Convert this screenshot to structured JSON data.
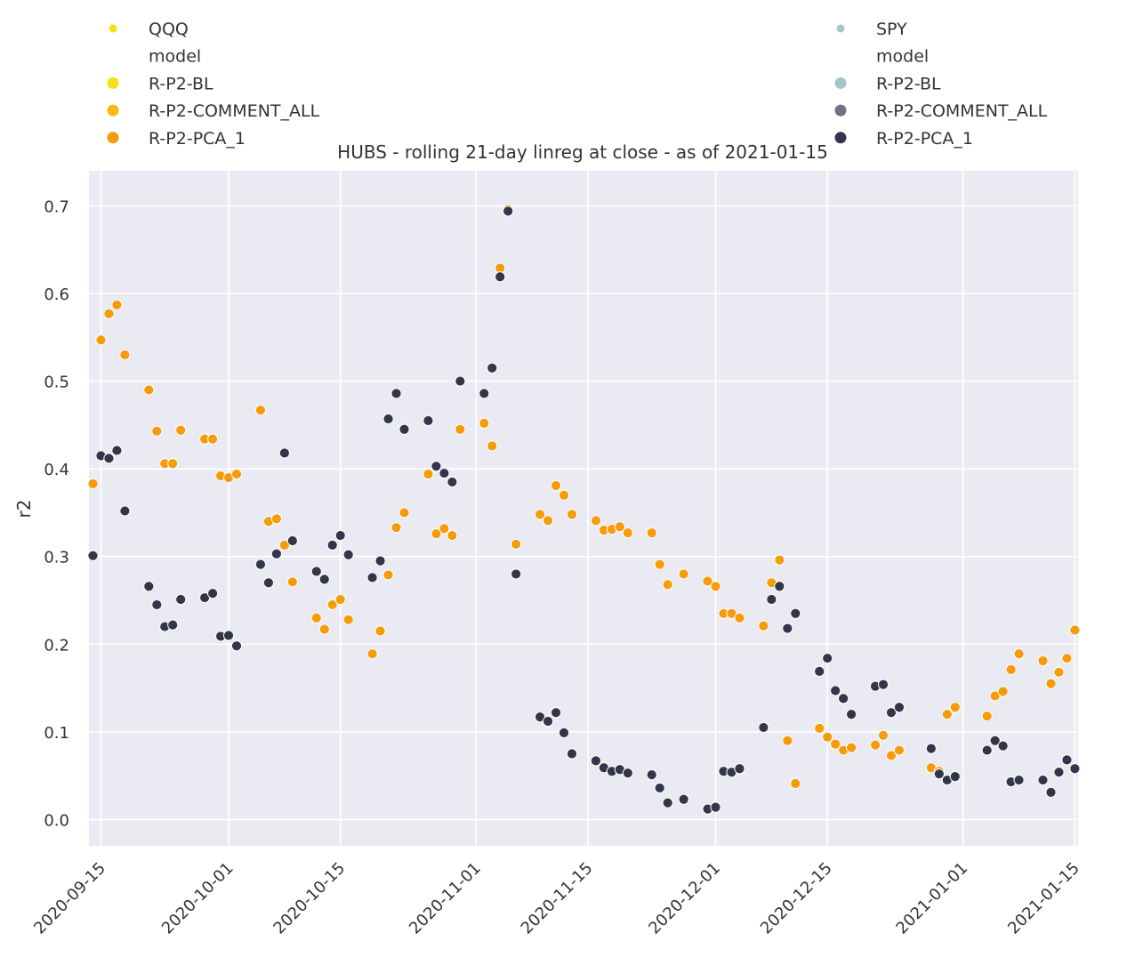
{
  "chart_data": {
    "type": "scatter",
    "title": "HUBS - rolling 21-day linreg at close - as of 2021-01-15",
    "xlabel": "",
    "ylabel": "r2",
    "ylim": [
      -0.03,
      0.74
    ],
    "xlim": [
      "2020-09-14",
      "2021-01-15"
    ],
    "grid": true,
    "background": "#eaeaf2",
    "x_ticks": [
      "2020-09-15",
      "2020-10-01",
      "2020-10-15",
      "2020-11-01",
      "2020-11-15",
      "2020-12-01",
      "2020-12-15",
      "2021-01-01",
      "2021-01-15"
    ],
    "y_ticks": [
      0.0,
      0.1,
      0.2,
      0.3,
      0.4,
      0.5,
      0.6,
      0.7
    ],
    "y_tick_labels": [
      "0.0",
      "0.1",
      "0.2",
      "0.3",
      "0.4",
      "0.5",
      "0.6",
      "0.7"
    ],
    "legends": [
      {
        "placement": "top-left",
        "entries": [
          {
            "label": "QQQ",
            "color": "#f5e11a",
            "kind": "hue"
          },
          {
            "label": "model",
            "color": null,
            "kind": "header"
          },
          {
            "label": "R-P2-BL",
            "color": "#f5e11a",
            "kind": "item"
          },
          {
            "label": "R-P2-COMMENT_ALL",
            "color": "#f5bc0c",
            "kind": "item"
          },
          {
            "label": "R-P2-PCA_1",
            "color": "#f59b0c",
            "kind": "item"
          }
        ]
      },
      {
        "placement": "top-right",
        "entries": [
          {
            "label": "SPY",
            "color": "#a3c7c7",
            "kind": "hue"
          },
          {
            "label": "model",
            "color": null,
            "kind": "header"
          },
          {
            "label": "R-P2-BL",
            "color": "#a3c7c7",
            "kind": "item"
          },
          {
            "label": "R-P2-COMMENT_ALL",
            "color": "#6b7385",
            "kind": "item"
          },
          {
            "label": "R-P2-PCA_1",
            "color": "#34344a",
            "kind": "item"
          }
        ]
      }
    ],
    "series": [
      {
        "name": "QQQ",
        "color": "#f59b0c",
        "points": [
          [
            "2020-09-14",
            0.383
          ],
          [
            "2020-09-15",
            0.547
          ],
          [
            "2020-09-16",
            0.577
          ],
          [
            "2020-09-17",
            0.587
          ],
          [
            "2020-09-18",
            0.53
          ],
          [
            "2020-09-21",
            0.49
          ],
          [
            "2020-09-22",
            0.443
          ],
          [
            "2020-09-23",
            0.406
          ],
          [
            "2020-09-24",
            0.406
          ],
          [
            "2020-09-25",
            0.444
          ],
          [
            "2020-09-28",
            0.434
          ],
          [
            "2020-09-29",
            0.434
          ],
          [
            "2020-09-30",
            0.392
          ],
          [
            "2020-10-01",
            0.39
          ],
          [
            "2020-10-02",
            0.394
          ],
          [
            "2020-10-05",
            0.467
          ],
          [
            "2020-10-06",
            0.34
          ],
          [
            "2020-10-07",
            0.343
          ],
          [
            "2020-10-08",
            0.313
          ],
          [
            "2020-10-09",
            0.271
          ],
          [
            "2020-10-12",
            0.23
          ],
          [
            "2020-10-13",
            0.217
          ],
          [
            "2020-10-14",
            0.245
          ],
          [
            "2020-10-15",
            0.251
          ],
          [
            "2020-10-16",
            0.228
          ],
          [
            "2020-10-19",
            0.189
          ],
          [
            "2020-10-20",
            0.215
          ],
          [
            "2020-10-21",
            0.279
          ],
          [
            "2020-10-22",
            0.333
          ],
          [
            "2020-10-23",
            0.35
          ],
          [
            "2020-10-26",
            0.394
          ],
          [
            "2020-10-27",
            0.326
          ],
          [
            "2020-10-28",
            0.332
          ],
          [
            "2020-10-29",
            0.324
          ],
          [
            "2020-10-30",
            0.445
          ],
          [
            "2020-11-02",
            0.452
          ],
          [
            "2020-11-03",
            0.426
          ],
          [
            "2020-11-04",
            0.629
          ],
          [
            "2020-11-05",
            0.696
          ],
          [
            "2020-11-06",
            0.314
          ],
          [
            "2020-11-09",
            0.348
          ],
          [
            "2020-11-10",
            0.341
          ],
          [
            "2020-11-11",
            0.381
          ],
          [
            "2020-11-12",
            0.37
          ],
          [
            "2020-11-13",
            0.348
          ],
          [
            "2020-11-16",
            0.341
          ],
          [
            "2020-11-17",
            0.33
          ],
          [
            "2020-11-18",
            0.331
          ],
          [
            "2020-11-19",
            0.334
          ],
          [
            "2020-11-20",
            0.327
          ],
          [
            "2020-11-23",
            0.327
          ],
          [
            "2020-11-24",
            0.291
          ],
          [
            "2020-11-25",
            0.268
          ],
          [
            "2020-11-27",
            0.28
          ],
          [
            "2020-11-30",
            0.272
          ],
          [
            "2020-12-01",
            0.266
          ],
          [
            "2020-12-02",
            0.235
          ],
          [
            "2020-12-03",
            0.235
          ],
          [
            "2020-12-04",
            0.23
          ],
          [
            "2020-12-07",
            0.221
          ],
          [
            "2020-12-08",
            0.27
          ],
          [
            "2020-12-09",
            0.296
          ],
          [
            "2020-12-10",
            0.09
          ],
          [
            "2020-12-11",
            0.041
          ],
          [
            "2020-12-14",
            0.104
          ],
          [
            "2020-12-15",
            0.094
          ],
          [
            "2020-12-16",
            0.086
          ],
          [
            "2020-12-17",
            0.079
          ],
          [
            "2020-12-18",
            0.082
          ],
          [
            "2020-12-21",
            0.085
          ],
          [
            "2020-12-22",
            0.096
          ],
          [
            "2020-12-23",
            0.073
          ],
          [
            "2020-12-24",
            0.079
          ],
          [
            "2020-12-28",
            0.059
          ],
          [
            "2020-12-29",
            0.055
          ],
          [
            "2020-12-30",
            0.12
          ],
          [
            "2020-12-31",
            0.128
          ],
          [
            "2021-01-04",
            0.118
          ],
          [
            "2021-01-05",
            0.141
          ],
          [
            "2021-01-06",
            0.146
          ],
          [
            "2021-01-07",
            0.171
          ],
          [
            "2021-01-08",
            0.189
          ],
          [
            "2021-01-11",
            0.181
          ],
          [
            "2021-01-12",
            0.155
          ],
          [
            "2021-01-13",
            0.168
          ],
          [
            "2021-01-14",
            0.184
          ],
          [
            "2021-01-15",
            0.216
          ]
        ]
      },
      {
        "name": "SPY",
        "color": "#34344a",
        "points": [
          [
            "2020-09-14",
            0.301
          ],
          [
            "2020-09-15",
            0.415
          ],
          [
            "2020-09-16",
            0.412
          ],
          [
            "2020-09-17",
            0.421
          ],
          [
            "2020-09-18",
            0.352
          ],
          [
            "2020-09-21",
            0.266
          ],
          [
            "2020-09-22",
            0.245
          ],
          [
            "2020-09-23",
            0.22
          ],
          [
            "2020-09-24",
            0.222
          ],
          [
            "2020-09-25",
            0.251
          ],
          [
            "2020-09-28",
            0.253
          ],
          [
            "2020-09-29",
            0.258
          ],
          [
            "2020-09-30",
            0.209
          ],
          [
            "2020-10-01",
            0.21
          ],
          [
            "2020-10-02",
            0.198
          ],
          [
            "2020-10-05",
            0.291
          ],
          [
            "2020-10-06",
            0.27
          ],
          [
            "2020-10-07",
            0.303
          ],
          [
            "2020-10-08",
            0.418
          ],
          [
            "2020-10-09",
            0.318
          ],
          [
            "2020-10-12",
            0.283
          ],
          [
            "2020-10-13",
            0.274
          ],
          [
            "2020-10-14",
            0.313
          ],
          [
            "2020-10-15",
            0.324
          ],
          [
            "2020-10-16",
            0.302
          ],
          [
            "2020-10-19",
            0.276
          ],
          [
            "2020-10-20",
            0.295
          ],
          [
            "2020-10-21",
            0.457
          ],
          [
            "2020-10-22",
            0.486
          ],
          [
            "2020-10-23",
            0.445
          ],
          [
            "2020-10-26",
            0.455
          ],
          [
            "2020-10-27",
            0.403
          ],
          [
            "2020-10-28",
            0.395
          ],
          [
            "2020-10-29",
            0.385
          ],
          [
            "2020-10-30",
            0.5
          ],
          [
            "2020-11-02",
            0.486
          ],
          [
            "2020-11-03",
            0.515
          ],
          [
            "2020-11-04",
            0.619
          ],
          [
            "2020-11-05",
            0.694
          ],
          [
            "2020-11-06",
            0.28
          ],
          [
            "2020-11-09",
            0.117
          ],
          [
            "2020-11-10",
            0.112
          ],
          [
            "2020-11-11",
            0.122
          ],
          [
            "2020-11-12",
            0.099
          ],
          [
            "2020-11-13",
            0.075
          ],
          [
            "2020-11-16",
            0.067
          ],
          [
            "2020-11-17",
            0.059
          ],
          [
            "2020-11-18",
            0.055
          ],
          [
            "2020-11-19",
            0.057
          ],
          [
            "2020-11-20",
            0.053
          ],
          [
            "2020-11-23",
            0.051
          ],
          [
            "2020-11-24",
            0.036
          ],
          [
            "2020-11-25",
            0.019
          ],
          [
            "2020-11-27",
            0.023
          ],
          [
            "2020-11-30",
            0.012
          ],
          [
            "2020-12-01",
            0.014
          ],
          [
            "2020-12-02",
            0.055
          ],
          [
            "2020-12-03",
            0.054
          ],
          [
            "2020-12-04",
            0.058
          ],
          [
            "2020-12-07",
            0.105
          ],
          [
            "2020-12-08",
            0.251
          ],
          [
            "2020-12-09",
            0.266
          ],
          [
            "2020-12-10",
            0.218
          ],
          [
            "2020-12-11",
            0.235
          ],
          [
            "2020-12-14",
            0.169
          ],
          [
            "2020-12-15",
            0.184
          ],
          [
            "2020-12-16",
            0.147
          ],
          [
            "2020-12-17",
            0.138
          ],
          [
            "2020-12-18",
            0.12
          ],
          [
            "2020-12-21",
            0.152
          ],
          [
            "2020-12-22",
            0.154
          ],
          [
            "2020-12-23",
            0.122
          ],
          [
            "2020-12-24",
            0.128
          ],
          [
            "2020-12-28",
            0.081
          ],
          [
            "2020-12-29",
            0.052
          ],
          [
            "2020-12-30",
            0.045
          ],
          [
            "2020-12-31",
            0.049
          ],
          [
            "2021-01-04",
            0.079
          ],
          [
            "2021-01-05",
            0.09
          ],
          [
            "2021-01-06",
            0.084
          ],
          [
            "2021-01-07",
            0.043
          ],
          [
            "2021-01-08",
            0.045
          ],
          [
            "2021-01-11",
            0.045
          ],
          [
            "2021-01-12",
            0.031
          ],
          [
            "2021-01-13",
            0.054
          ],
          [
            "2021-01-14",
            0.068
          ],
          [
            "2021-01-15",
            0.058
          ]
        ]
      }
    ]
  }
}
